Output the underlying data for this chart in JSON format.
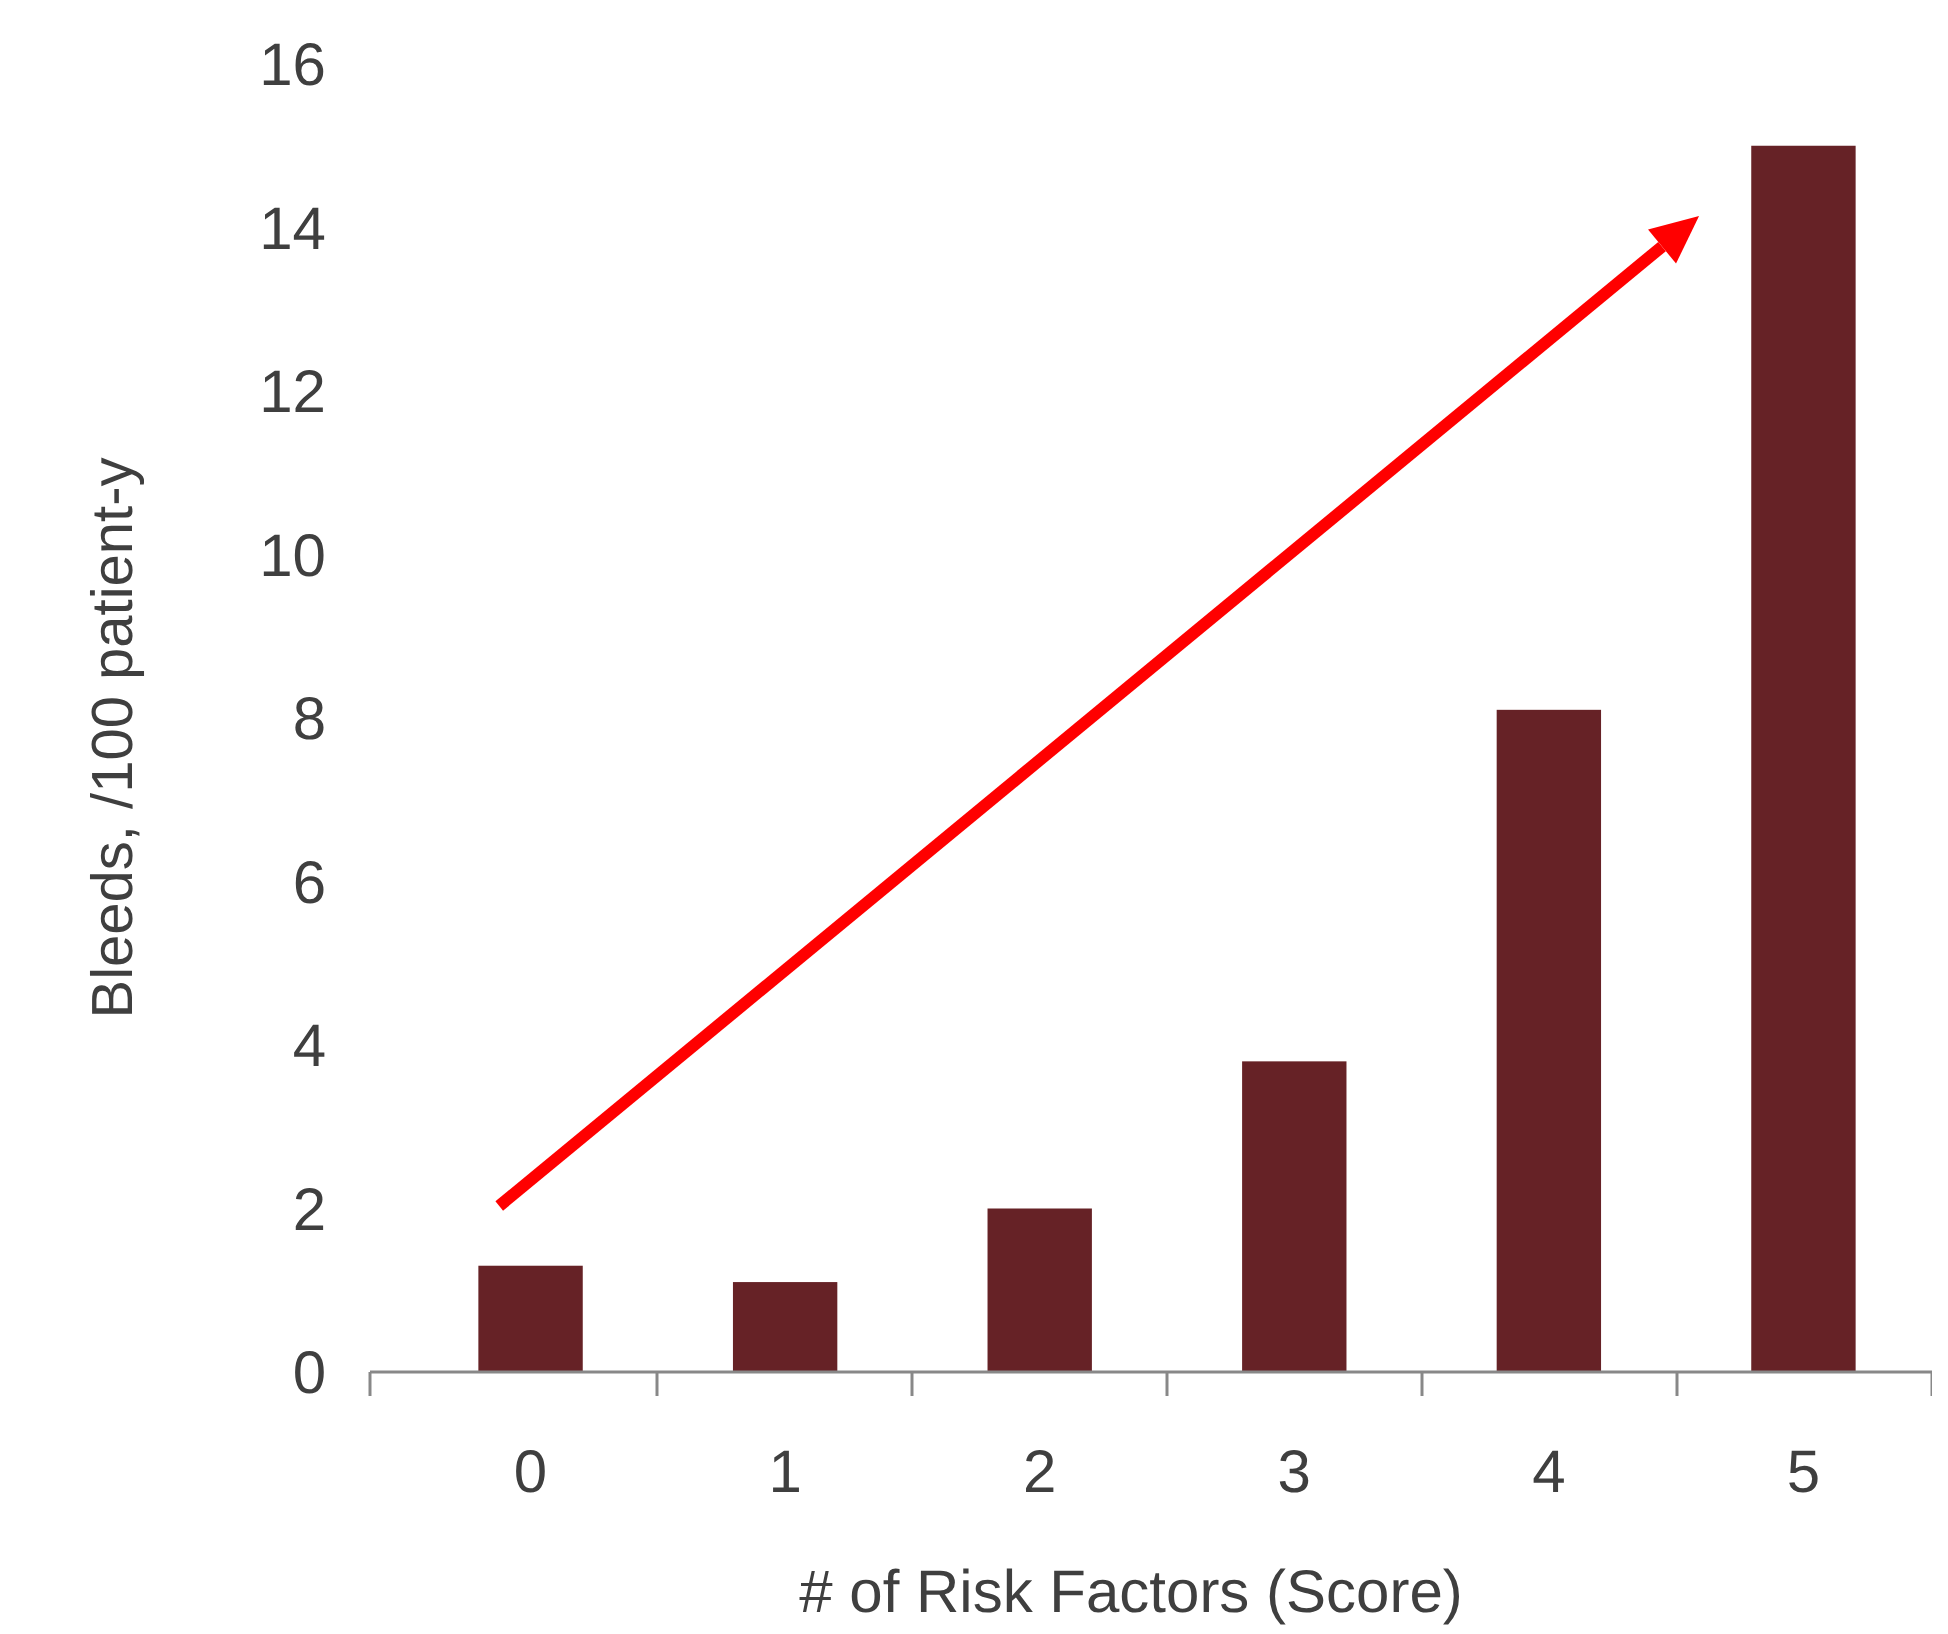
{
  "chart_data": {
    "type": "bar",
    "xlabel": "# of Risk Factors (Score)",
    "ylabel": "Bleeds, /100 patient-y",
    "categories": [
      "0",
      "1",
      "2",
      "3",
      "4",
      "5"
    ],
    "values": [
      1.3,
      1.1,
      2.0,
      3.8,
      8.1,
      15.0
    ],
    "color": "#662226",
    "ylim": [
      0,
      16
    ],
    "yticks": [
      0,
      2,
      4,
      6,
      8,
      10,
      12,
      14,
      16
    ],
    "grid": false
  }
}
